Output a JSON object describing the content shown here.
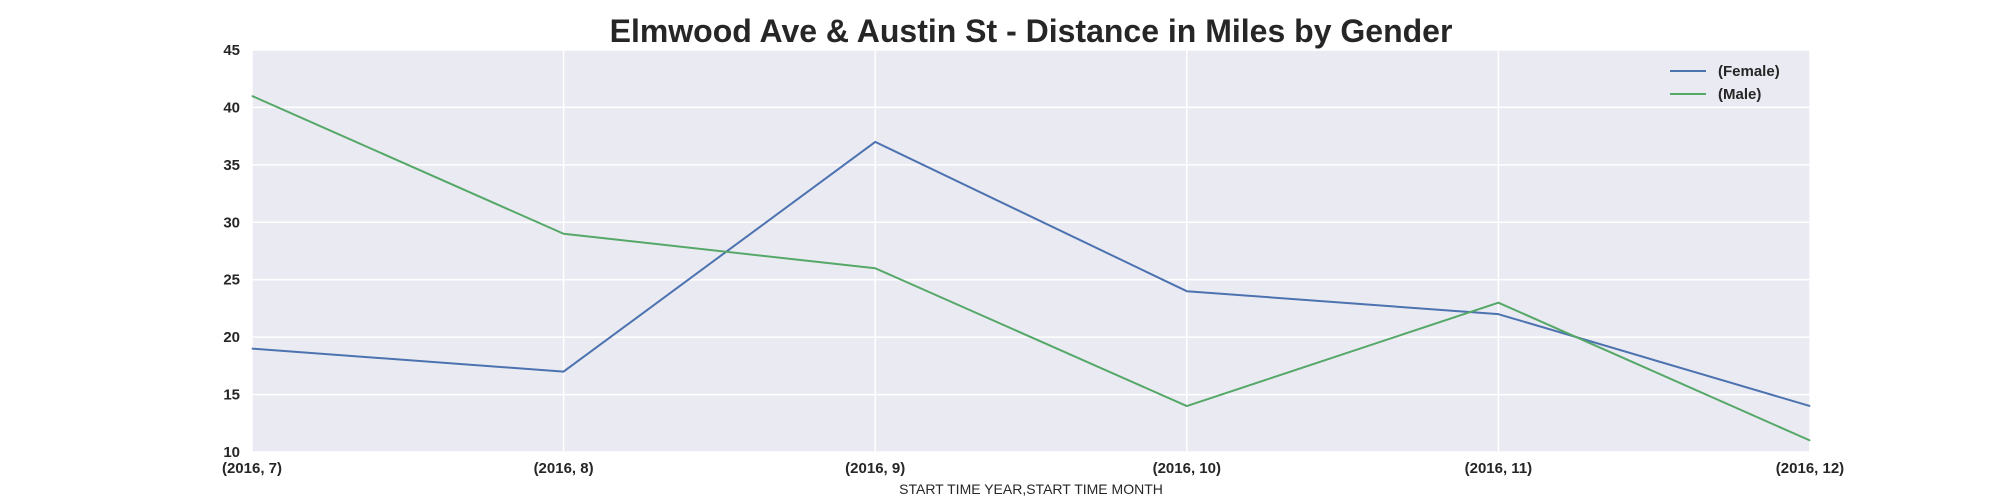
{
  "chart_data": {
    "type": "line",
    "title": "Elmwood Ave & Austin St - Distance in Miles by Gender",
    "xlabel": "START TIME YEAR,START TIME MONTH",
    "ylabel": "",
    "categories": [
      "(2016, 7)",
      "(2016, 8)",
      "(2016, 9)",
      "(2016, 10)",
      "(2016, 11)",
      "(2016, 12)"
    ],
    "ylim": [
      10,
      45
    ],
    "yticks": [
      10,
      15,
      20,
      25,
      30,
      35,
      40,
      45
    ],
    "grid": true,
    "legend_position": "top-right",
    "series": [
      {
        "name": "(Female)",
        "color": "#4c72b0",
        "values": [
          19,
          17,
          37,
          24,
          22,
          14
        ]
      },
      {
        "name": "(Male)",
        "color": "#55a868",
        "values": [
          41,
          29,
          26,
          14,
          23,
          11
        ]
      }
    ],
    "colors": {
      "plot_background": "#eaeaf2",
      "grid": "#ffffff",
      "text": "#262626"
    }
  }
}
